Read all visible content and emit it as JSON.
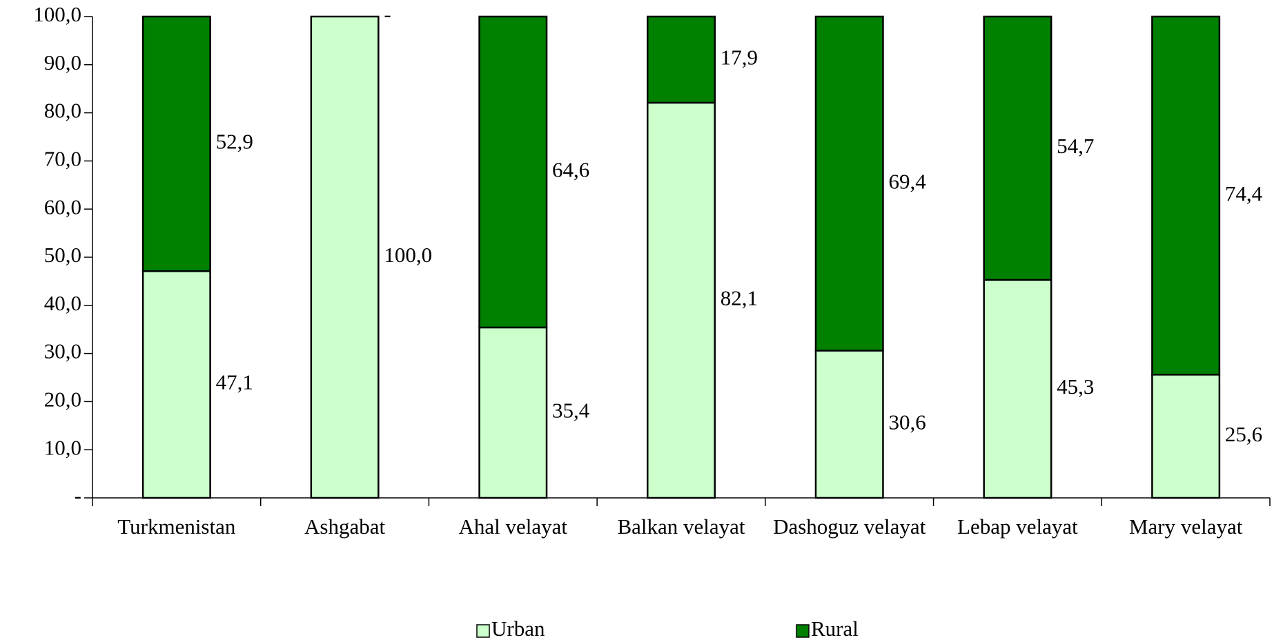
{
  "chart_data": {
    "type": "stacked_bar",
    "categories": [
      "Turkmenistan",
      "Ashgabat",
      "Ahal velayat",
      "Balkan velayat",
      "Dashoguz velayat",
      "Lebap velayat",
      "Mary velayat"
    ],
    "series": [
      {
        "name": "Urban",
        "color": "#ccffcc",
        "values": [
          47.1,
          100.0,
          35.4,
          82.1,
          30.6,
          45.3,
          25.6
        ],
        "value_labels": [
          "47,1",
          "100,0",
          "35,4",
          "82,1",
          "30,6",
          "45,3",
          "25,6"
        ]
      },
      {
        "name": "Rural",
        "color": "#008000",
        "values": [
          52.9,
          0,
          64.6,
          17.9,
          69.4,
          54.7,
          74.4
        ],
        "value_labels": [
          "52,9",
          "-",
          "64,6",
          "17,9",
          "69,4",
          "54,7",
          "74,4"
        ]
      }
    ],
    "ylim": [
      0,
      100
    ],
    "yticks": [
      {
        "value": 0,
        "label": "-"
      },
      {
        "value": 10,
        "label": "10,0"
      },
      {
        "value": 20,
        "label": "20,0"
      },
      {
        "value": 30,
        "label": "30,0"
      },
      {
        "value": 40,
        "label": "40,0"
      },
      {
        "value": 50,
        "label": "50,0"
      },
      {
        "value": 60,
        "label": "60,0"
      },
      {
        "value": 70,
        "label": "70,0"
      },
      {
        "value": 80,
        "label": "80,0"
      },
      {
        "value": 90,
        "label": "90,0"
      },
      {
        "value": 100,
        "label": "100,0"
      }
    ],
    "legend": "bottom"
  }
}
